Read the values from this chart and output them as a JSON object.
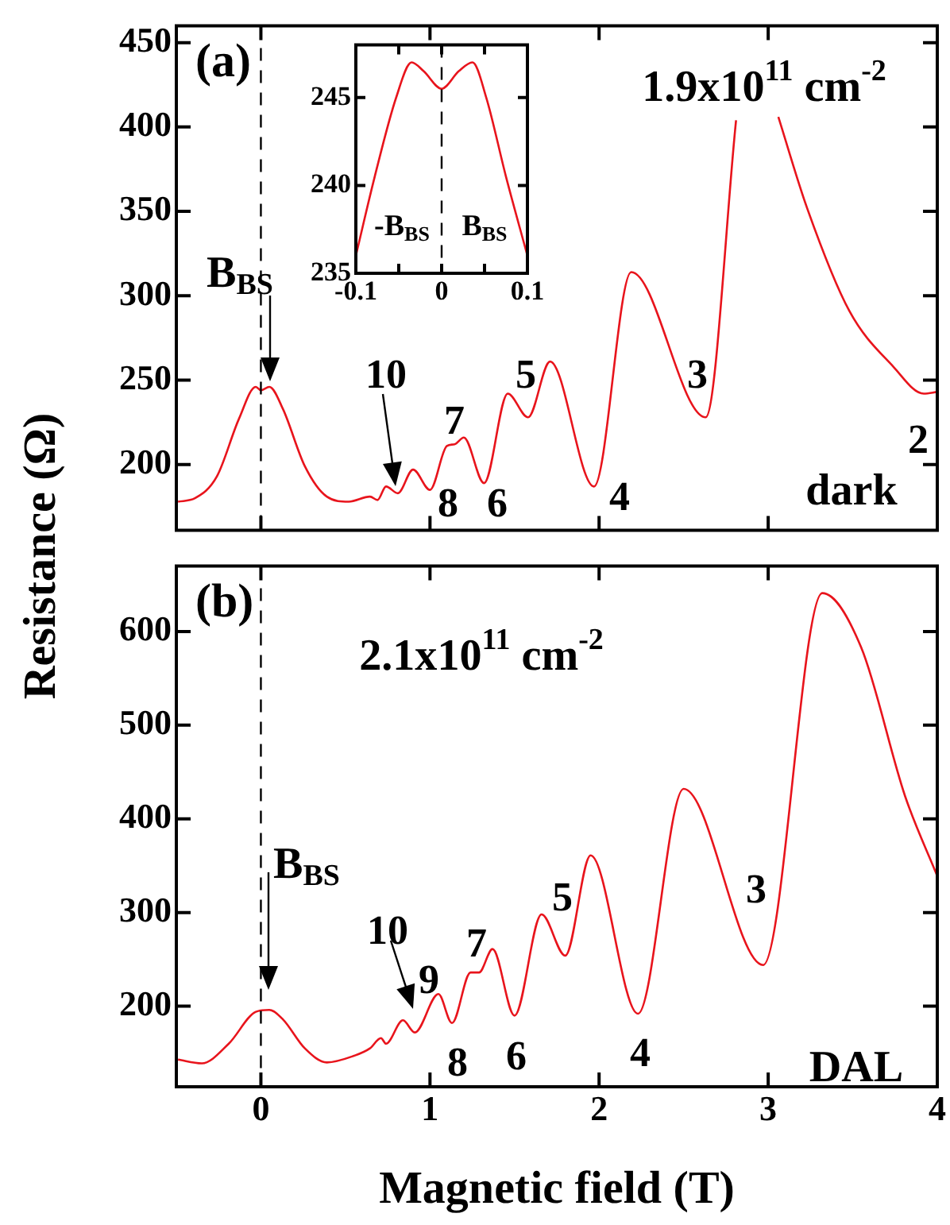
{
  "chart_data": [
    {
      "type": "line",
      "title": "(a)",
      "xlim": [
        -0.5,
        4
      ],
      "xticks": [
        0,
        1,
        2,
        3,
        4
      ],
      "ylim": [
        161,
        460
      ],
      "yticks": [
        200,
        250,
        300,
        350,
        400,
        450
      ],
      "tick_labels": "y",
      "legend": false,
      "marker": "none",
      "line_style": "solid",
      "x": [
        -0.49,
        -0.39,
        -0.26,
        -0.13,
        -0.03,
        0,
        0.05,
        0.13,
        0.26,
        0.39,
        0.52,
        0.645,
        0.69,
        0.74,
        0.81,
        0.9,
        1.0,
        1.1,
        1.145,
        1.2,
        1.32,
        1.46,
        1.58,
        1.71,
        1.97,
        2.19,
        2.63,
        2.81,
        2.93,
        3.06,
        3.23,
        3.48,
        3.74,
        3.92,
        4.0
      ],
      "series": [
        {
          "color": "#e8141c",
          "values": [
            178,
            180,
            193,
            227,
            246,
            244,
            246,
            233,
            199,
            181,
            178,
            181,
            179,
            187,
            183,
            197,
            185,
            211,
            212,
            216,
            189,
            242,
            228,
            261,
            187,
            314,
            228,
            404,
            null,
            406,
            352,
            291,
            258,
            242,
            243
          ]
        }
      ],
      "ref_lines": [
        {
          "axis": "x",
          "value": 0,
          "line_style": "dashed",
          "color": "#000000"
        }
      ],
      "annotations": [
        "B$_{BS}$",
        "10",
        "7",
        "5",
        "3",
        "2",
        "8",
        "6",
        "4",
        "1.9x10$^{11}$ cm$^{-2}$",
        "dark"
      ]
    },
    {
      "type": "line",
      "xlim": [
        -0.1,
        0.1
      ],
      "xticks": [
        -0.1,
        {
          "value": -0.05,
          "label": null
        },
        0,
        {
          "value": 0.05,
          "label": null
        },
        0.1
      ],
      "ylim": [
        235,
        248
      ],
      "yticks": [
        235,
        240,
        245
      ],
      "legend": false,
      "marker": "none",
      "line_style": "solid",
      "x": [
        -0.1,
        -0.078,
        -0.053,
        -0.035,
        -0.021,
        0,
        0.02,
        0.036,
        0.052,
        0.075,
        0.1
      ],
      "series": [
        {
          "color": "#e8141c",
          "values": [
            236,
            240.5,
            245,
            247,
            246.5,
            245.5,
            246.5,
            247,
            245,
            240.5,
            236
          ]
        }
      ],
      "ref_lines": [
        {
          "axis": "x",
          "value": 0,
          "line_style": "dashed",
          "color": "#000000"
        }
      ],
      "annotations": [
        "-B$_{BS}$",
        "B$_{BS}$"
      ]
    },
    {
      "type": "line",
      "title": "(b)",
      "xlabel": "Magnetic field (T)",
      "ylabel": "Resistance (Ω)",
      "xlim": [
        -0.5,
        4
      ],
      "xticks": [
        0,
        1,
        2,
        3,
        4
      ],
      "ylim": [
        114,
        670
      ],
      "yticks": [
        200,
        300,
        400,
        500,
        600
      ],
      "legend": false,
      "marker": "none",
      "line_style": "solid",
      "x": [
        -0.49,
        -0.35,
        -0.19,
        -0.03,
        0.05,
        0.13,
        0.26,
        0.39,
        0.55,
        0.645,
        0.71,
        0.74,
        0.84,
        0.91,
        1.05,
        1.13,
        1.24,
        1.29,
        1.37,
        1.5,
        1.66,
        1.8,
        1.95,
        2.23,
        2.5,
        2.97,
        3.32,
        3.55,
        3.81,
        4.0
      ],
      "series": [
        {
          "color": "#e8141c",
          "values": [
            143,
            139,
            160,
            194,
            196,
            186,
            155,
            140,
            147,
            155,
            166,
            160,
            185,
            172,
            213,
            182,
            236,
            236,
            261,
            190,
            298,
            254,
            361,
            192,
            432,
            244,
            641,
            583,
            424,
            339
          ]
        }
      ],
      "ref_lines": [
        {
          "axis": "x",
          "value": 0,
          "line_style": "dashed",
          "color": "#000000"
        }
      ],
      "annotations": [
        "2.1x10$^{11}$ cm$^{-2}$",
        "B$_{BS}$",
        "10",
        "9",
        "7",
        "5",
        "3",
        "8",
        "6",
        "4",
        "DAL"
      ]
    }
  ]
}
